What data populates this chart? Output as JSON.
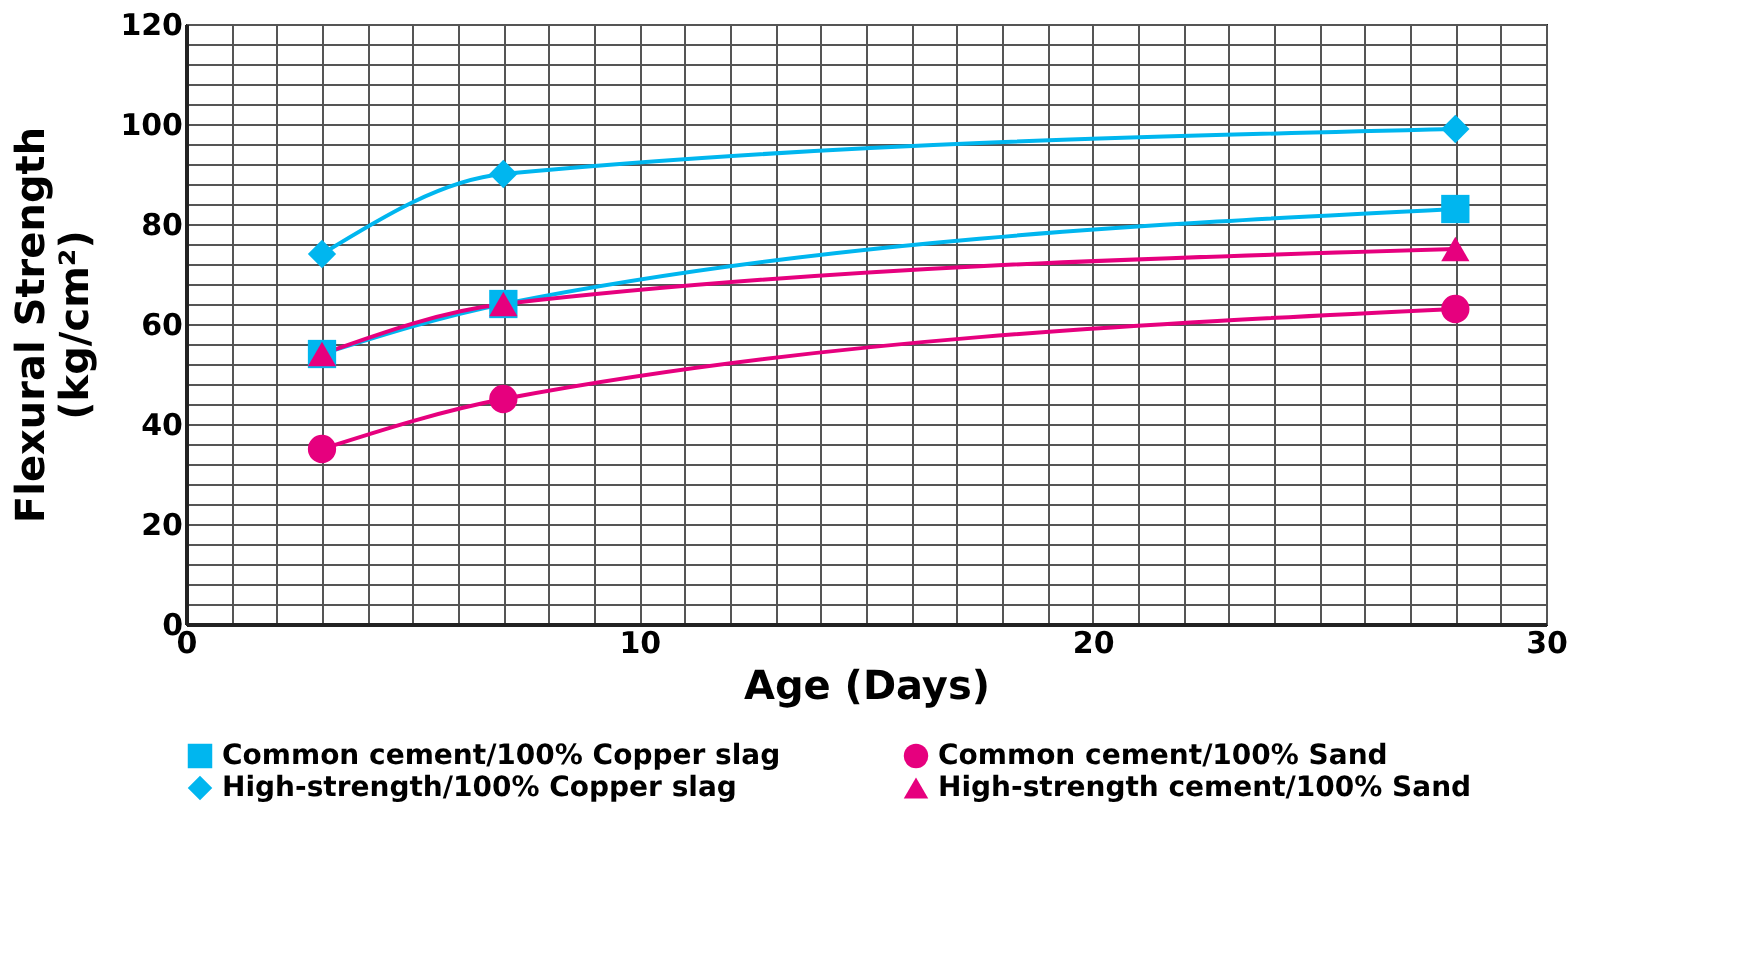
{
  "chart_data": {
    "type": "line",
    "xlabel": "Age (Days)",
    "ylabel": "Flexural Strength\n(kg/cm²)",
    "xlim": [
      0,
      30
    ],
    "xticks": [
      0,
      10,
      20,
      30
    ],
    "ylim": [
      0,
      120
    ],
    "yticks": [
      0,
      20,
      40,
      60,
      80,
      100,
      120
    ],
    "grid": true,
    "legend": "bottom",
    "line_style": "solid",
    "series": [
      {
        "name": "Common cement/100% Copper slag",
        "color": "#00b6ef",
        "marker": "square",
        "x": [
          3,
          7,
          28
        ],
        "values": [
          54,
          64,
          83
        ]
      },
      {
        "name": "Common cement/100% Sand",
        "color": "#e6007e",
        "marker": "circle",
        "x": [
          3,
          7,
          28
        ],
        "values": [
          35,
          45,
          63
        ]
      },
      {
        "name": "High-strength/100%  Copper slag",
        "color": "#00b6ef",
        "marker": "diamond",
        "x": [
          3,
          7,
          28
        ],
        "values": [
          74,
          90,
          99
        ]
      },
      {
        "name": "High-strength cement/100% Sand",
        "color": "#e6007e",
        "marker": "triangle",
        "x": [
          3,
          7,
          28
        ],
        "values": [
          54,
          64,
          75
        ]
      }
    ]
  }
}
